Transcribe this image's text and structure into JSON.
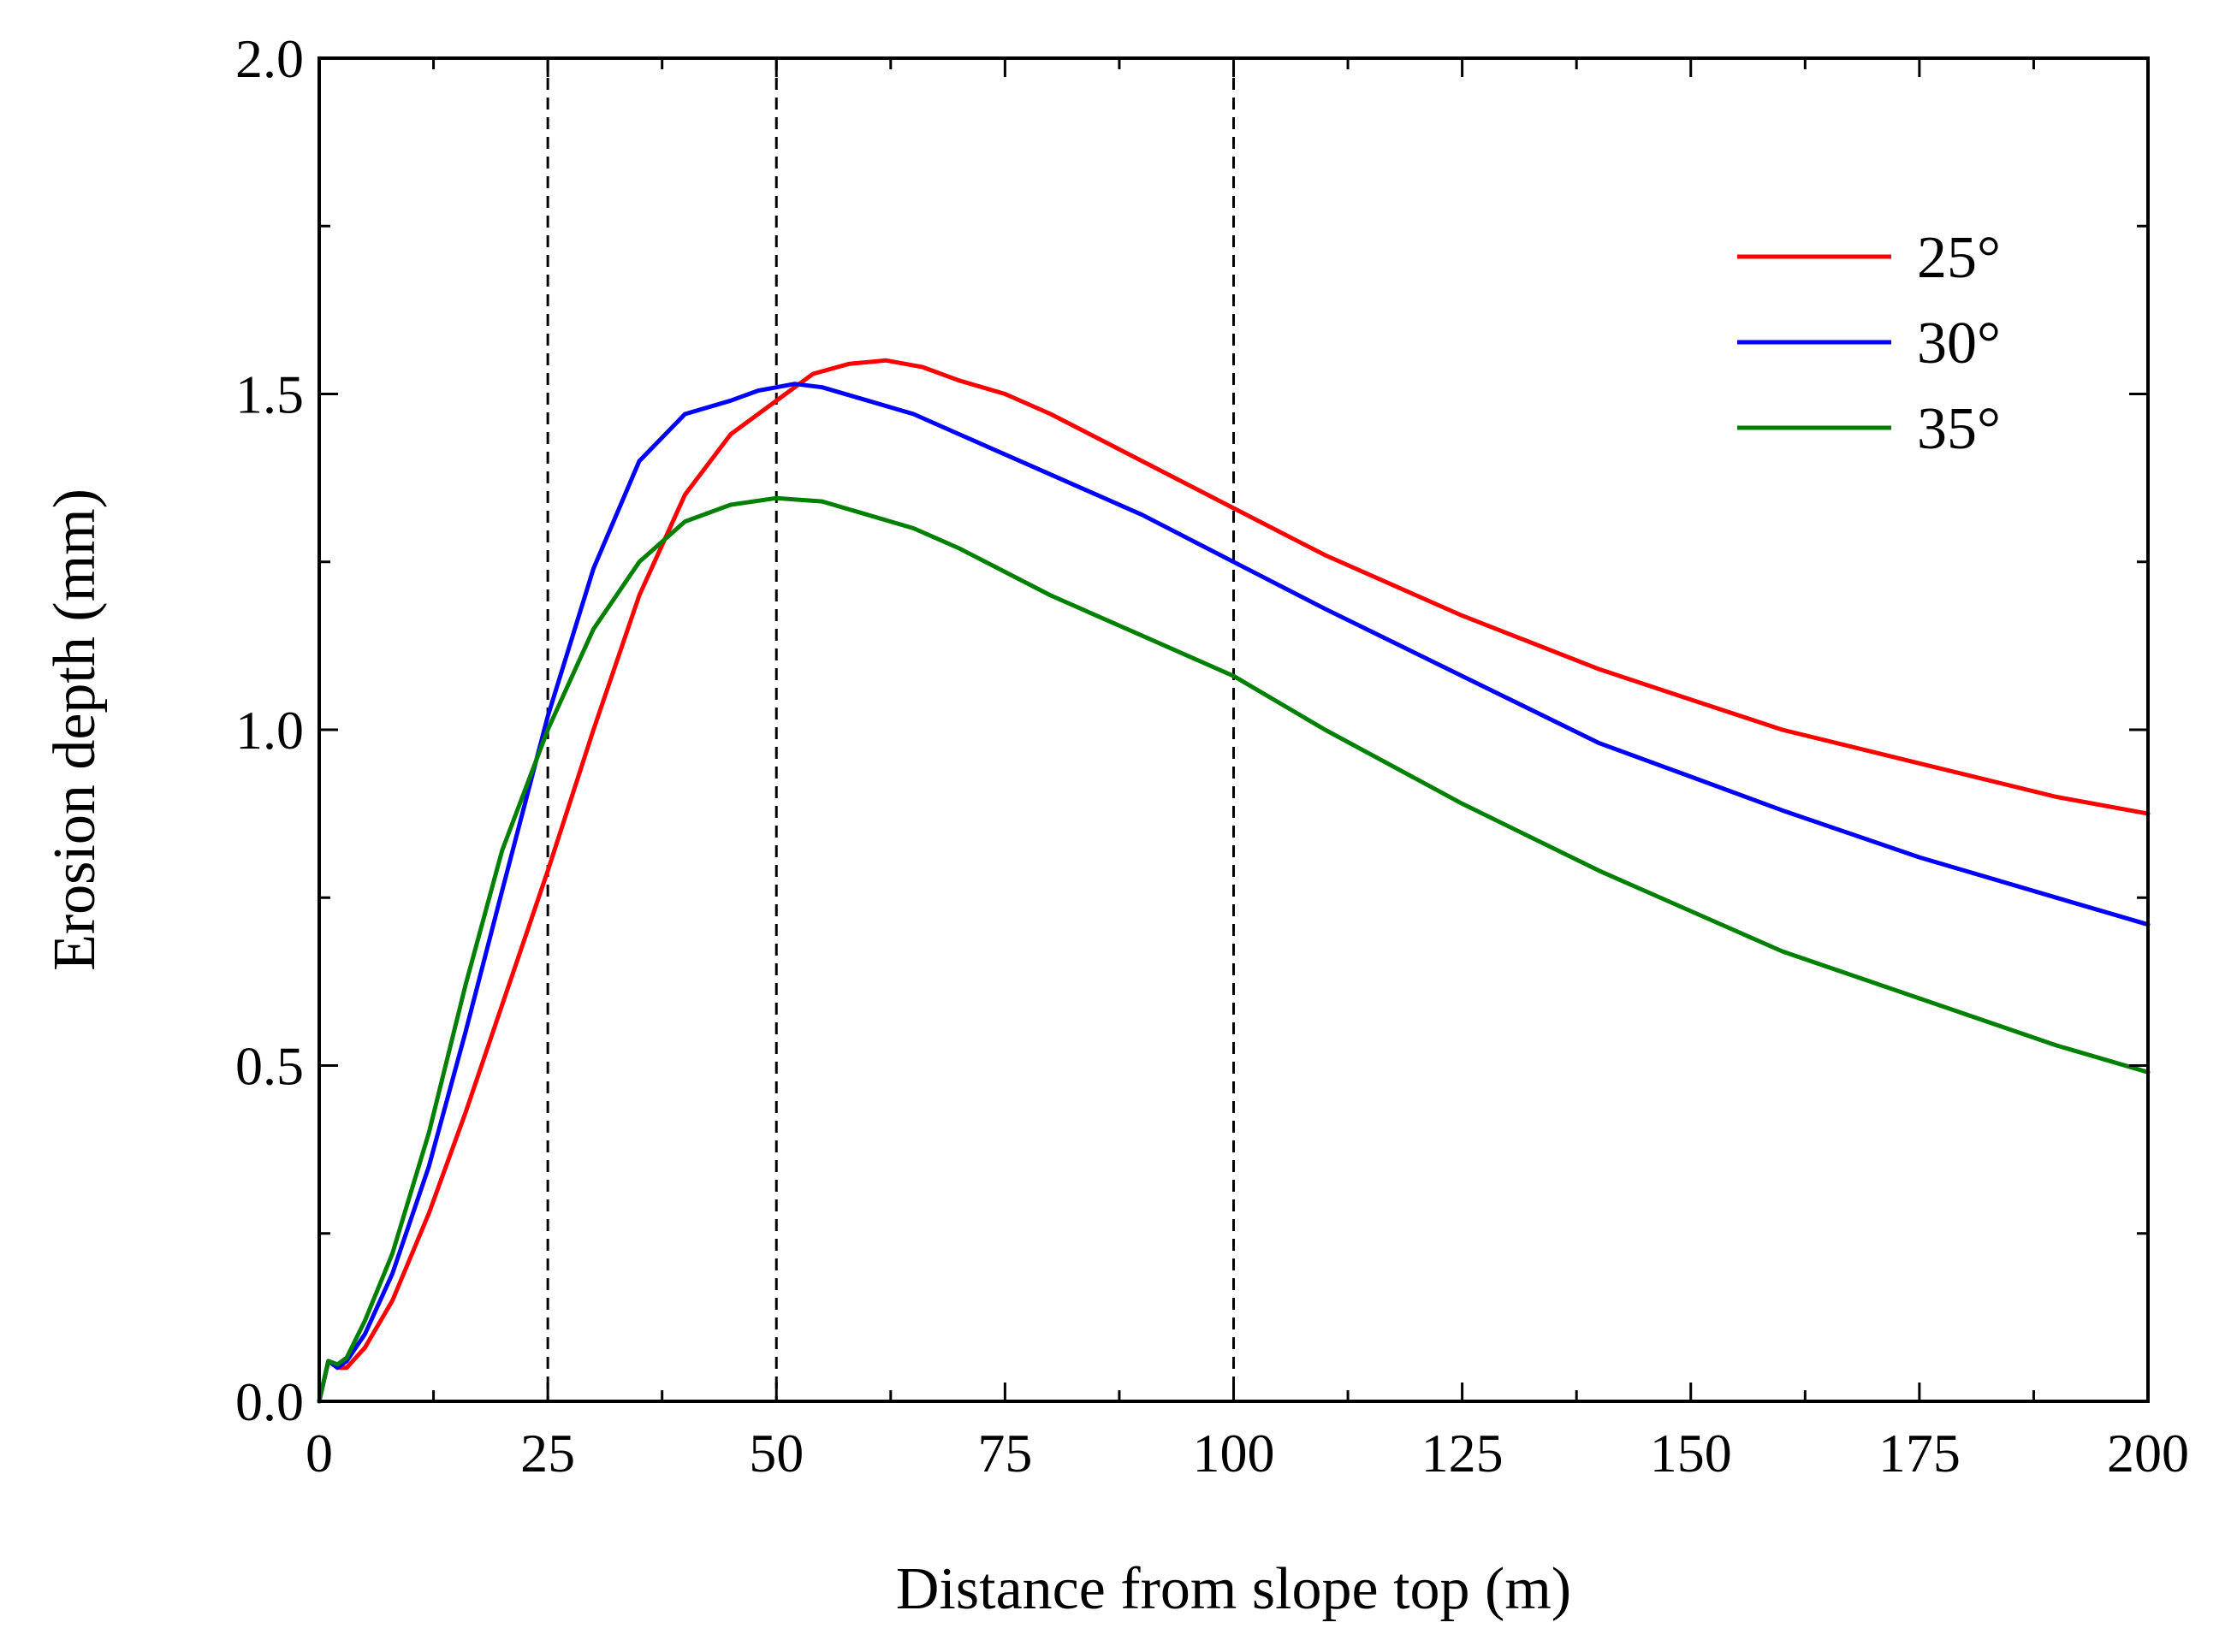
{
  "chart_data": {
    "type": "line",
    "title": "",
    "xlabel": "Distance from slope top (m)",
    "ylabel": "Erosion depth (mm)",
    "xlim": [
      0,
      200
    ],
    "ylim": [
      0,
      2.0
    ],
    "xticks": [
      0,
      25,
      50,
      75,
      100,
      125,
      150,
      175,
      200
    ],
    "xtick_labels": [
      "0",
      "25",
      "50",
      "75",
      "100",
      "125",
      "150",
      "175",
      "200"
    ],
    "yticks": [
      0.0,
      0.5,
      1.0,
      1.5,
      2.0
    ],
    "ytick_labels": [
      "0.0",
      "0.5",
      "1.0",
      "1.5",
      "2.0"
    ],
    "grid": false,
    "legend_position": "top-right",
    "reference_lines_x": [
      25,
      50,
      100
    ],
    "series": [
      {
        "name": "25°",
        "color": "#ff0000",
        "x": [
          0,
          1,
          2,
          3,
          5,
          8,
          12,
          16,
          20,
          25,
          30,
          35,
          40,
          45,
          50,
          54,
          58,
          62,
          66,
          70,
          75,
          80,
          90,
          100,
          110,
          125,
          140,
          150,
          160,
          175,
          190,
          200
        ],
        "y": [
          0.0,
          0.06,
          0.05,
          0.05,
          0.08,
          0.15,
          0.28,
          0.43,
          0.59,
          0.79,
          1.0,
          1.2,
          1.35,
          1.44,
          1.49,
          1.53,
          1.545,
          1.55,
          1.54,
          1.52,
          1.5,
          1.47,
          1.4,
          1.33,
          1.26,
          1.17,
          1.09,
          1.045,
          1.0,
          0.95,
          0.9,
          0.875
        ]
      },
      {
        "name": "30°",
        "color": "#0000ff",
        "x": [
          0,
          1,
          2,
          3,
          5,
          8,
          12,
          16,
          20,
          25,
          30,
          35,
          40,
          45,
          48,
          50,
          52,
          55,
          60,
          65,
          70,
          75,
          80,
          90,
          100,
          110,
          125,
          140,
          150,
          160,
          175,
          190,
          200
        ],
        "y": [
          0.0,
          0.06,
          0.05,
          0.06,
          0.1,
          0.19,
          0.35,
          0.55,
          0.76,
          1.02,
          1.24,
          1.4,
          1.47,
          1.49,
          1.505,
          1.51,
          1.515,
          1.51,
          1.49,
          1.47,
          1.44,
          1.41,
          1.38,
          1.32,
          1.25,
          1.18,
          1.08,
          0.98,
          0.93,
          0.88,
          0.81,
          0.75,
          0.71
        ]
      },
      {
        "name": "35°",
        "color": "#008000",
        "x": [
          0,
          1,
          2,
          3,
          5,
          8,
          12,
          16,
          20,
          25,
          30,
          35,
          40,
          45,
          50,
          55,
          60,
          65,
          70,
          75,
          80,
          90,
          100,
          110,
          125,
          140,
          150,
          160,
          175,
          190,
          200
        ],
        "y": [
          0.0,
          0.06,
          0.055,
          0.065,
          0.12,
          0.22,
          0.4,
          0.62,
          0.82,
          1.0,
          1.15,
          1.25,
          1.31,
          1.335,
          1.345,
          1.34,
          1.32,
          1.3,
          1.27,
          1.235,
          1.2,
          1.14,
          1.08,
          1.0,
          0.89,
          0.79,
          0.73,
          0.67,
          0.6,
          0.53,
          0.49
        ]
      }
    ]
  }
}
